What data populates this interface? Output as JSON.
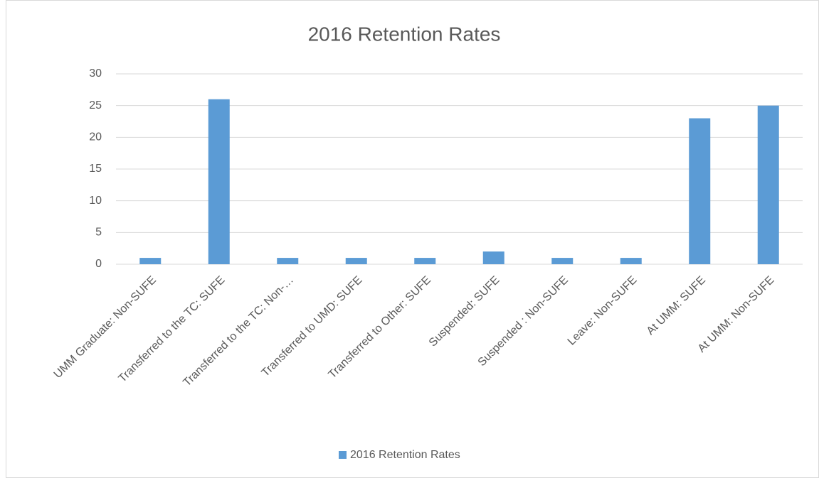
{
  "chart_data": {
    "type": "bar",
    "title": "2016 Retention Rates",
    "categories": [
      "UMM Graduate: Non-SUFE",
      "Transferred to the TC: SUFE",
      "Transferred to the TC: Non-…",
      "Transferred to UMD: SUFE",
      "Transferred to Other: SUFE",
      "Suspended: SUFE",
      "Suspended : Non-SUFE",
      "Leave: Non-SUFE",
      "At UMM: SUFE",
      "At UMM: Non-SUFE"
    ],
    "series": [
      {
        "name": "2016 Retention Rates",
        "color": "#5b9bd5",
        "values": [
          1,
          26,
          1,
          1,
          1,
          2,
          1,
          1,
          23,
          25
        ]
      }
    ],
    "ylim": [
      0,
      30
    ],
    "yticks": [
      0,
      5,
      10,
      15,
      20,
      25,
      30
    ],
    "grid": true,
    "legend": "bottom"
  }
}
